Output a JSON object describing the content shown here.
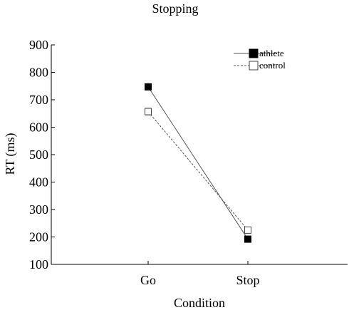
{
  "chart_data": {
    "type": "line",
    "title": "Stopping",
    "xlabel": "Condition",
    "ylabel": "RT (ms)",
    "categories": [
      "Go",
      "Stop"
    ],
    "ylim": [
      100,
      900
    ],
    "yticks": [
      100,
      200,
      300,
      400,
      500,
      600,
      700,
      800,
      900
    ],
    "legend_position": "top-right",
    "series": [
      {
        "name": "athlete",
        "values": [
          747,
          192
        ],
        "error": [
          10,
          6
        ],
        "marker": "filled-square",
        "line": "solid",
        "color": "#000000"
      },
      {
        "name": "control",
        "values": [
          657,
          225
        ],
        "error": [
          12,
          6
        ],
        "marker": "open-square",
        "line": "dashed",
        "color": "#555555"
      }
    ]
  }
}
